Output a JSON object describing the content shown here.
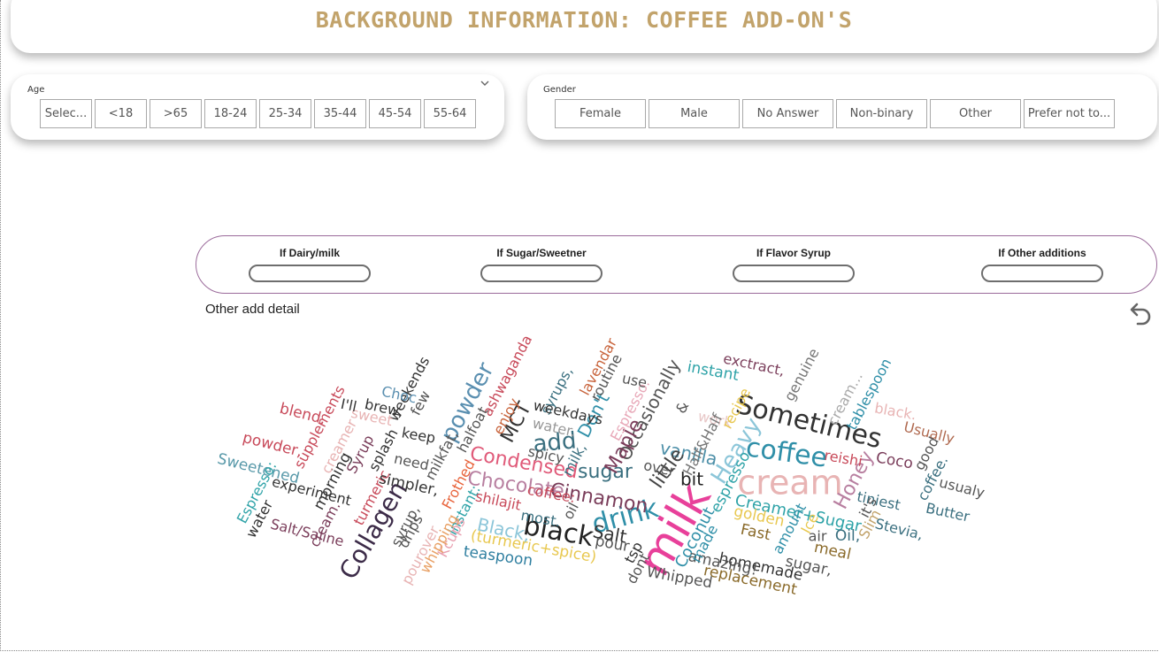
{
  "title": "BACKGROUND INFORMATION: COFFEE ADD-ON'S",
  "age": {
    "label": "Age",
    "options": [
      "Selec...",
      "<18",
      ">65",
      "18-24",
      "25-34",
      "35-44",
      "45-54",
      "55-64"
    ]
  },
  "gender": {
    "label": "Gender",
    "options": [
      "Female",
      "Male",
      "No Answer",
      "Non-binary",
      "Other",
      "Prefer not to..."
    ]
  },
  "filters": [
    {
      "label": "If Dairy/milk"
    },
    {
      "label": "If Sugar/Sweetner"
    },
    {
      "label": "If Flavor Syrup"
    },
    {
      "label": "If Other additions"
    }
  ],
  "wordcloud": {
    "title": "Other add detail",
    "words": [
      {
        "text": "milk",
        "color": "#e8409a",
        "size": 52,
        "rotate": -60
      },
      {
        "text": "cream",
        "color": "#e8b4b4",
        "size": 38,
        "rotate": 0
      },
      {
        "text": "Sometimes",
        "color": "#333333",
        "size": 30,
        "rotate": 14
      },
      {
        "text": "coffee",
        "color": "#2f8fa8",
        "size": 30,
        "rotate": 8
      },
      {
        "text": "drink",
        "color": "#2f8fa8",
        "size": 30,
        "rotate": -15
      },
      {
        "text": "black",
        "color": "#222222",
        "size": 30,
        "rotate": 10
      },
      {
        "text": "Collagen",
        "color": "#3c2b48",
        "size": 28,
        "rotate": -60
      },
      {
        "text": "Condensed",
        "color": "#e05a79",
        "size": 22,
        "rotate": 10
      },
      {
        "text": "Chocolate",
        "color": "#b87fa0",
        "size": 22,
        "rotate": 8
      },
      {
        "text": "Cinnamon",
        "color": "#7a3d5a",
        "size": 22,
        "rotate": 10
      },
      {
        "text": "Heavy",
        "color": "#8cc6d9",
        "size": 26,
        "rotate": -58
      },
      {
        "text": "add",
        "color": "#3a6f7f",
        "size": 26,
        "rotate": -5
      },
      {
        "text": "sugar",
        "color": "#3a6f7f",
        "size": 22,
        "rotate": 0
      },
      {
        "text": "Occasionally",
        "color": "#555555",
        "size": 20,
        "rotate": -62
      },
      {
        "text": "Maple",
        "color": "#7a3d5a",
        "size": 22,
        "rotate": -62
      },
      {
        "text": "vanilla",
        "color": "#4d8fa8",
        "size": 20,
        "rotate": 12
      },
      {
        "text": "powder",
        "color": "#5a8fb0",
        "size": 26,
        "rotate": -62
      },
      {
        "text": "MCT",
        "color": "#333333",
        "size": 22,
        "rotate": -62
      },
      {
        "text": "Honey",
        "color": "#b87fa0",
        "size": 22,
        "rotate": -62
      },
      {
        "text": "Creamer+Sugar",
        "color": "#2fa3a8",
        "size": 18,
        "rotate": 12
      },
      {
        "text": "little",
        "color": "#444444",
        "size": 22,
        "rotate": -55
      },
      {
        "text": "bit",
        "color": "#222222",
        "size": 20,
        "rotate": 0
      },
      {
        "text": "Salt",
        "color": "#333333",
        "size": 20,
        "rotate": 10
      },
      {
        "text": "Black,",
        "color": "#8cc6d9",
        "size": 20,
        "rotate": 12
      },
      {
        "text": "Don't",
        "color": "#2f8fa8",
        "size": 20,
        "rotate": -62
      },
      {
        "text": "espresso",
        "color": "#2fa3a8",
        "size": 17,
        "rotate": -62
      },
      {
        "text": "Coconut",
        "color": "#2f8fa8",
        "size": 18,
        "rotate": -62
      },
      {
        "text": "Espresso.",
        "color": "#e8a8b8",
        "size": 16,
        "rotate": -62
      },
      {
        "text": "supplements",
        "color": "#c84a5a",
        "size": 16,
        "rotate": -62
      },
      {
        "text": "ashwaganda",
        "color": "#c84a5a",
        "size": 16,
        "rotate": -62
      },
      {
        "text": "lavendar",
        "color": "#c8643c",
        "size": 16,
        "rotate": -62
      },
      {
        "text": "tablespoon",
        "color": "#2f8fa8",
        "size": 16,
        "rotate": -62
      },
      {
        "text": "genuine",
        "color": "#777777",
        "size": 16,
        "rotate": -62
      },
      {
        "text": "Sweetened",
        "color": "#5a9aaa",
        "size": 17,
        "rotate": 14
      },
      {
        "text": "experiment",
        "color": "#333333",
        "size": 16,
        "rotate": 14
      },
      {
        "text": "Salt/Saline",
        "color": "#7a3d5a",
        "size": 16,
        "rotate": 14
      },
      {
        "text": "blend,",
        "color": "#c84a5a",
        "size": 17,
        "rotate": 14
      },
      {
        "text": "powder,",
        "color": "#c84a5a",
        "size": 17,
        "rotate": 14
      },
      {
        "text": "instant",
        "color": "#2fa3a8",
        "size": 17,
        "rotate": 10
      },
      {
        "text": "exctract,",
        "color": "#7a3d5a",
        "size": 16,
        "rotate": 12
      },
      {
        "text": "Usually",
        "color": "#b06a50",
        "size": 16,
        "rotate": 14
      },
      {
        "text": "usualy",
        "color": "#555555",
        "size": 16,
        "rotate": 14
      },
      {
        "text": "Butter",
        "color": "#3a6f7f",
        "size": 16,
        "rotate": 12
      },
      {
        "text": "Stevia,",
        "color": "#3a6f7f",
        "size": 16,
        "rotate": 14
      },
      {
        "text": "tiniest",
        "color": "#3a6f7f",
        "size": 16,
        "rotate": 12
      },
      {
        "text": "Oil,",
        "color": "#3a6f7f",
        "size": 17,
        "rotate": 0
      },
      {
        "text": "Slim",
        "color": "#c2a36b",
        "size": 16,
        "rotate": -62
      },
      {
        "text": "homemade",
        "color": "#333333",
        "size": 17,
        "rotate": 12
      },
      {
        "text": "amazing!",
        "color": "#555555",
        "size": 17,
        "rotate": 12
      },
      {
        "text": "replacement",
        "color": "#8a6a2a",
        "size": 17,
        "rotate": 12
      },
      {
        "text": "Whipped",
        "color": "#555555",
        "size": 17,
        "rotate": 10
      },
      {
        "text": "(turmeric+spice)",
        "color": "#e8c850",
        "size": 17,
        "rotate": 10
      },
      {
        "text": "teaspoon",
        "color": "#2f7fa0",
        "size": 17,
        "rotate": 8
      },
      {
        "text": "golden",
        "color": "#e8c850",
        "size": 17,
        "rotate": 12
      },
      {
        "text": "Fast",
        "color": "#8a6a2a",
        "size": 17,
        "rotate": 12
      },
      {
        "text": "meal",
        "color": "#8a6a2a",
        "size": 17,
        "rotate": 12
      },
      {
        "text": "sugar,",
        "color": "#555555",
        "size": 17,
        "rotate": 12
      },
      {
        "text": "air",
        "color": "#555555",
        "size": 16,
        "rotate": 0
      },
      {
        "text": "reishi",
        "color": "#c84a5a",
        "size": 16,
        "rotate": 10
      },
      {
        "text": "Coco",
        "color": "#7a3d5a",
        "size": 17,
        "rotate": 10
      },
      {
        "text": "black.",
        "color": "#e8b4b4",
        "size": 16,
        "rotate": 10
      },
      {
        "text": "cream...",
        "color": "#aaaaaa",
        "size": 16,
        "rotate": -62
      },
      {
        "text": "good",
        "color": "#555555",
        "size": 16,
        "rotate": -62
      },
      {
        "text": "coffee.",
        "color": "#3a6f7f",
        "size": 16,
        "rotate": -62
      },
      {
        "text": "syrups,",
        "color": "#3a6f7f",
        "size": 16,
        "rotate": -62
      },
      {
        "text": "weekdays",
        "color": "#333333",
        "size": 16,
        "rotate": 12
      },
      {
        "text": "water.",
        "color": "#999999",
        "size": 16,
        "rotate": 12
      },
      {
        "text": "spicy",
        "color": "#555555",
        "size": 16,
        "rotate": 12
      },
      {
        "text": "use",
        "color": "#555555",
        "size": 16,
        "rotate": 12
      },
      {
        "text": "routine",
        "color": "#555555",
        "size": 16,
        "rotate": -62
      },
      {
        "text": "enjoy",
        "color": "#c8643c",
        "size": 16,
        "rotate": -62
      },
      {
        "text": "halfoat",
        "color": "#555555",
        "size": 16,
        "rotate": -62
      },
      {
        "text": "milkfat,",
        "color": "#555555",
        "size": 16,
        "rotate": -62
      },
      {
        "text": "Frothed",
        "color": "#e8643c",
        "size": 16,
        "rotate": -62
      },
      {
        "text": "Instant:",
        "color": "#2fa3a8",
        "size": 16,
        "rotate": -62
      },
      {
        "text": "Kcups",
        "color": "#e8a0b0",
        "size": 16,
        "rotate": -62
      },
      {
        "text": "pourover",
        "color": "#e8b4b4",
        "size": 16,
        "rotate": -62
      },
      {
        "text": "whipping",
        "color": "#e8a064",
        "size": 16,
        "rotate": -62
      },
      {
        "text": "drips",
        "color": "#555555",
        "size": 16,
        "rotate": -62
      },
      {
        "text": "syrup,",
        "color": "#555555",
        "size": 16,
        "rotate": -62
      },
      {
        "text": "turmeric",
        "color": "#c84a5a",
        "size": 16,
        "rotate": -62
      },
      {
        "text": "morning",
        "color": "#333333",
        "size": 17,
        "rotate": -62
      },
      {
        "text": "simpler,",
        "color": "#333333",
        "size": 17,
        "rotate": 12
      },
      {
        "text": "need",
        "color": "#555555",
        "size": 16,
        "rotate": 12
      },
      {
        "text": "keep",
        "color": "#333333",
        "size": 16,
        "rotate": 10
      },
      {
        "text": "few",
        "color": "#555555",
        "size": 16,
        "rotate": -62
      },
      {
        "text": "weekends",
        "color": "#333333",
        "size": 16,
        "rotate": -62
      },
      {
        "text": "Choc",
        "color": "#5a8fb0",
        "size": 16,
        "rotate": 12
      },
      {
        "text": "brew,",
        "color": "#333333",
        "size": 16,
        "rotate": 12
      },
      {
        "text": "sweet",
        "color": "#e8b4b4",
        "size": 16,
        "rotate": 12
      },
      {
        "text": "I'll",
        "color": "#333333",
        "size": 16,
        "rotate": 12
      },
      {
        "text": "creamer",
        "color": "#e8b4b4",
        "size": 16,
        "rotate": -62
      },
      {
        "text": "Syrup",
        "color": "#7a3d5a",
        "size": 16,
        "rotate": -62
      },
      {
        "text": "splash",
        "color": "#333333",
        "size": 16,
        "rotate": -62
      },
      {
        "text": "Espresso:",
        "color": "#2fa3a8",
        "size": 16,
        "rotate": -62
      },
      {
        "text": "water",
        "color": "#333333",
        "size": 16,
        "rotate": -62
      },
      {
        "text": "cream.",
        "color": "#7a3d5a",
        "size": 16,
        "rotate": -62
      },
      {
        "text": "shilajit",
        "color": "#c84a5a",
        "size": 16,
        "rotate": 12
      },
      {
        "text": "most.",
        "color": "#3a6f7f",
        "size": 16,
        "rotate": 10
      },
      {
        "text": "oil",
        "color": "#555555",
        "size": 16,
        "rotate": -62
      },
      {
        "text": "coffee:",
        "color": "#c84a5a",
        "size": 16,
        "rotate": 10
      },
      {
        "text": "pour",
        "color": "#555555",
        "size": 17,
        "rotate": 10
      },
      {
        "text": "tsp",
        "color": "#333333",
        "size": 16,
        "rotate": -62
      },
      {
        "text": "dont",
        "color": "#555555",
        "size": 16,
        "rotate": -62
      },
      {
        "text": "made",
        "color": "#2f8fa8",
        "size": 16,
        "rotate": -62
      },
      {
        "text": "amount",
        "color": "#2f8fa8",
        "size": 16,
        "rotate": -62
      },
      {
        "text": "Ice",
        "color": "#e8c850",
        "size": 16,
        "rotate": -62
      },
      {
        "text": "it's",
        "color": "#555555",
        "size": 16,
        "rotate": -62
      },
      {
        "text": "&",
        "color": "#555555",
        "size": 16,
        "rotate": -62
      },
      {
        "text": "work",
        "color": "#e8c8c8",
        "size": 16,
        "rotate": 12
      },
      {
        "text": "recipe",
        "color": "#e8c850",
        "size": 16,
        "rotate": -62
      },
      {
        "text": "Half&Half",
        "color": "#777777",
        "size": 16,
        "rotate": -62
      },
      {
        "text": "over",
        "color": "#555555",
        "size": 16,
        "rotate": 12
      },
      {
        "text": "milk,",
        "color": "#3a6f7f",
        "size": 16,
        "rotate": -62
      }
    ]
  }
}
